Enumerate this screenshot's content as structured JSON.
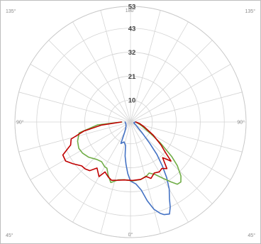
{
  "chart_data": {
    "type": "polar-line",
    "angle_axis": {
      "labels": [
        {
          "text": "180°",
          "angle": 0
        },
        {
          "text": "135°",
          "angle": 315
        },
        {
          "text": "135°",
          "angle": 45
        },
        {
          "text": "90°",
          "angle": 270
        },
        {
          "text": "90°",
          "angle": 90
        },
        {
          "text": "45°",
          "angle": 225
        },
        {
          "text": "45°",
          "angle": 135
        },
        {
          "text": "0°",
          "angle": 180
        }
      ],
      "spoke_step_degrees": 15
    },
    "radial_axis": {
      "max": 53,
      "ticks": [
        10,
        21,
        32,
        43,
        53
      ]
    },
    "grid": true,
    "series": [
      {
        "color": "#4472c4",
        "points": [
          [
            90,
            2.2
          ],
          [
            100,
            1.6
          ],
          [
            110,
            1.8
          ],
          [
            120,
            2.8
          ],
          [
            128,
            4.4
          ],
          [
            133,
            7.3
          ],
          [
            138,
            13.2
          ],
          [
            141,
            19.3
          ],
          [
            144,
            24.8
          ],
          [
            147,
            30.5
          ],
          [
            150,
            35.5
          ],
          [
            153,
            39.3
          ],
          [
            155,
            43.1
          ],
          [
            157,
            45.8
          ],
          [
            160,
            45.2
          ],
          [
            162,
            44.0
          ],
          [
            165,
            41.4
          ],
          [
            168,
            36.9
          ],
          [
            171,
            31.6
          ],
          [
            175,
            28.5
          ],
          [
            180,
            27.1
          ],
          [
            183,
            23.7
          ],
          [
            186,
            19.6
          ],
          [
            189,
            15.8
          ],
          [
            192,
            10.9
          ],
          [
            198,
            9.6
          ],
          [
            204,
            10.8
          ],
          [
            210,
            5.2
          ],
          [
            225,
            2.9
          ],
          [
            240,
            2.4
          ],
          [
            255,
            2.3
          ],
          [
            270,
            2.5
          ]
        ]
      },
      {
        "color": "#70ad47",
        "points": [
          [
            90,
            2.6
          ],
          [
            110,
            5.7
          ],
          [
            120,
            10.5
          ],
          [
            125,
            16.7
          ],
          [
            130,
            24.7
          ],
          [
            133,
            29.4
          ],
          [
            137,
            33.9
          ],
          [
            140,
            35.9
          ],
          [
            143,
            35.7
          ],
          [
            146,
            33.1
          ],
          [
            150,
            29.8
          ],
          [
            155,
            26.5
          ],
          [
            160,
            24.9
          ],
          [
            163,
            25.7
          ],
          [
            170,
            26.8
          ],
          [
            178,
            27.0
          ],
          [
            186,
            26.6
          ],
          [
            192,
            27.1
          ],
          [
            198,
            29.2
          ],
          [
            203,
            26.3
          ],
          [
            207,
            23.8
          ],
          [
            210,
            23.7
          ],
          [
            216,
            22.5
          ],
          [
            222,
            23.1
          ],
          [
            230,
            25.1
          ],
          [
            237,
            26.2
          ],
          [
            243,
            26.6
          ],
          [
            250,
            25.8
          ],
          [
            258,
            24.1
          ],
          [
            265,
            15.1
          ],
          [
            270,
            4.0
          ]
        ]
      },
      {
        "color": "#c00000",
        "points": [
          [
            90,
            2.4
          ],
          [
            100,
            4.3
          ],
          [
            110,
            6.9
          ],
          [
            120,
            12.0
          ],
          [
            127,
            17.5
          ],
          [
            131,
            21.1
          ],
          [
            134,
            25.8
          ],
          [
            138,
            22.0
          ],
          [
            142,
            27.1
          ],
          [
            146,
            25.7
          ],
          [
            150,
            26.4
          ],
          [
            155,
            25.8
          ],
          [
            160,
            27.5
          ],
          [
            164,
            26.0
          ],
          [
            170,
            26.7
          ],
          [
            178,
            26.8
          ],
          [
            186,
            26.7
          ],
          [
            192,
            27.3
          ],
          [
            198,
            28.1
          ],
          [
            202,
            27.2
          ],
          [
            207,
            25.7
          ],
          [
            210,
            28.9
          ],
          [
            216,
            26.1
          ],
          [
            220,
            29.1
          ],
          [
            224,
            29.9
          ],
          [
            228,
            30.1
          ],
          [
            234,
            32.6
          ],
          [
            239,
            34.7
          ],
          [
            244,
            34.5
          ],
          [
            249,
            29.4
          ],
          [
            254,
            28.3
          ],
          [
            259,
            21.8
          ],
          [
            264,
            13.3
          ],
          [
            270,
            4.2
          ]
        ]
      }
    ]
  }
}
